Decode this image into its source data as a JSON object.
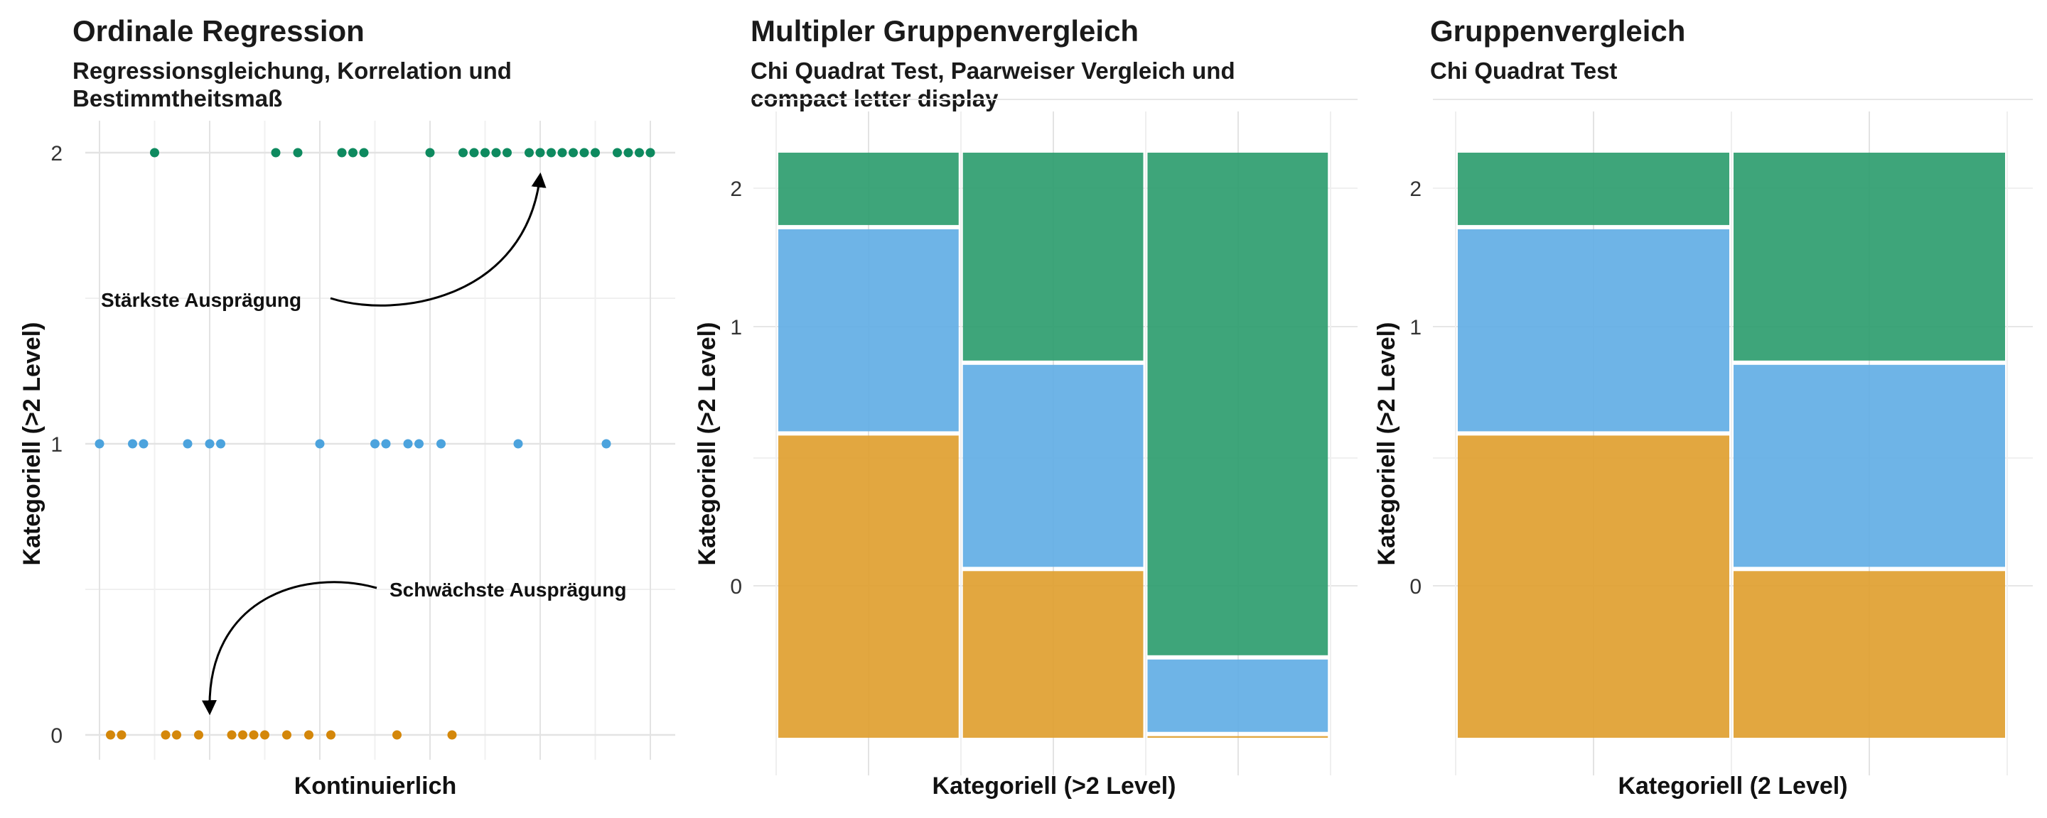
{
  "chart_data": [
    {
      "type": "scatter",
      "title": "Ordinale Regression",
      "subtitle": "Regressionsgleichung, Korrelation und Bestimmtheitsmaß",
      "xlabel": "Kontinuierlich",
      "ylabel": "Kategoriell (>2 Level)",
      "y_ticks": [
        "0",
        "1",
        "2"
      ],
      "ylim": [
        -0.05,
        2.05
      ],
      "xlim": [
        0,
        1
      ],
      "grid": true,
      "series": [
        {
          "category": "0",
          "color": "#D4870A",
          "x": [
            0.02,
            0.04,
            0.12,
            0.14,
            0.18,
            0.24,
            0.26,
            0.28,
            0.3,
            0.34,
            0.38,
            0.42,
            0.54,
            0.64
          ]
        },
        {
          "category": "1",
          "color": "#4CA3DD",
          "x": [
            0.0,
            0.06,
            0.08,
            0.16,
            0.2,
            0.22,
            0.4,
            0.5,
            0.52,
            0.56,
            0.58,
            0.62,
            0.76,
            0.92
          ]
        },
        {
          "category": "2",
          "color": "#0E8A5F",
          "x": [
            0.1,
            0.32,
            0.36,
            0.44,
            0.46,
            0.48,
            0.6,
            0.66,
            0.68,
            0.7,
            0.72,
            0.74,
            0.78,
            0.8,
            0.82,
            0.84,
            0.86,
            0.88,
            0.9,
            0.94,
            0.96,
            0.98,
            1.0
          ]
        }
      ],
      "annotations": [
        {
          "text": "Stärkste Ausprägung",
          "points_to": {
            "x": 0.8,
            "y": 2
          }
        },
        {
          "text": "Schwächste Ausprägung",
          "points_to": {
            "x": 0.2,
            "y": 0
          }
        }
      ]
    },
    {
      "type": "mosaic",
      "title": "Multipler Gruppenvergleich",
      "subtitle": "Chi Quadrat Test, Paarweiser Vergleich und compact letter display",
      "xlabel": "Kategoriell (>2 Level)",
      "ylabel": "Kategoriell (>2 Level)",
      "y_tick_labels": [
        "0",
        "1",
        "2"
      ],
      "grid": true,
      "columns": [
        {
          "width": 0.333,
          "shares": {
            "0": 0.52,
            "1": 0.35,
            "2": 0.13
          }
        },
        {
          "width": 0.333,
          "shares": {
            "0": 0.29,
            "1": 0.35,
            "2": 0.36
          }
        },
        {
          "width": 0.333,
          "shares": {
            "0": 0.01,
            "1": 0.13,
            "2": 0.86
          }
        }
      ],
      "colors": {
        "0": "#E0A030",
        "1": "#62AEE5",
        "2": "#2E9D6F"
      }
    },
    {
      "type": "mosaic",
      "title": "Gruppenvergleich",
      "subtitle": "Chi Quadrat Test",
      "xlabel": "Kategoriell (2 Level)",
      "ylabel": "Kategoriell (>2 Level)",
      "y_tick_labels": [
        "0",
        "1",
        "2"
      ],
      "grid": true,
      "columns": [
        {
          "width": 0.5,
          "shares": {
            "0": 0.52,
            "1": 0.35,
            "2": 0.13
          }
        },
        {
          "width": 0.5,
          "shares": {
            "0": 0.29,
            "1": 0.35,
            "2": 0.36
          }
        }
      ],
      "colors": {
        "0": "#E0A030",
        "1": "#62AEE5",
        "2": "#2E9D6F"
      }
    }
  ]
}
